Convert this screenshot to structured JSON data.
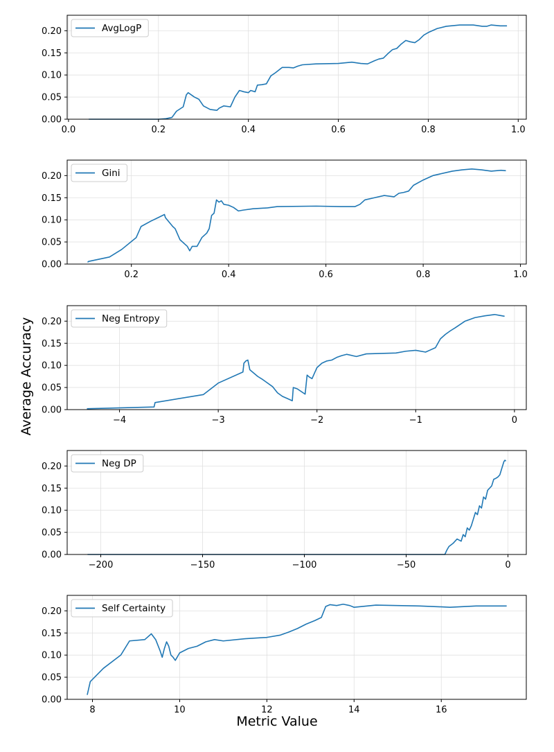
{
  "figure": {
    "ylabel": "Average Accuracy",
    "xlabel": "Metric Value"
  },
  "colors": {
    "line": "#1f77b4",
    "grid": "#e0e0e0",
    "axis": "#000000",
    "legend_border": "#cccccc"
  },
  "chart_data": [
    {
      "type": "line",
      "legend": "AvgLogP",
      "legend_loc": "upper-left",
      "grid": true,
      "xlim": [
        -0.003,
        1.018
      ],
      "ylim": [
        0,
        0.235
      ],
      "xticks": [
        0.0,
        0.2,
        0.4,
        0.6,
        0.8,
        1.0
      ],
      "xtick_labels": [
        "0.0",
        "0.2",
        "0.4",
        "0.6",
        "0.8",
        "1.0"
      ],
      "yticks": [
        0.0,
        0.05,
        0.1,
        0.15,
        0.2
      ],
      "ytick_labels": [
        "0.00",
        "0.05",
        "0.10",
        "0.15",
        "0.20"
      ],
      "x": [
        0.045,
        0.2,
        0.215,
        0.23,
        0.24,
        0.255,
        0.262,
        0.266,
        0.28,
        0.29,
        0.3,
        0.315,
        0.33,
        0.335,
        0.345,
        0.36,
        0.37,
        0.38,
        0.39,
        0.4,
        0.405,
        0.415,
        0.42,
        0.43,
        0.44,
        0.45,
        0.46,
        0.475,
        0.49,
        0.5,
        0.51,
        0.52,
        0.55,
        0.6,
        0.63,
        0.65,
        0.665,
        0.68,
        0.69,
        0.7,
        0.71,
        0.72,
        0.73,
        0.74,
        0.75,
        0.76,
        0.77,
        0.78,
        0.79,
        0.8,
        0.82,
        0.84,
        0.86,
        0.87,
        0.9,
        0.92,
        0.93,
        0.94,
        0.95,
        0.96,
        0.975
      ],
      "y": [
        0.0,
        0.0,
        0.001,
        0.004,
        0.018,
        0.028,
        0.055,
        0.06,
        0.05,
        0.045,
        0.03,
        0.022,
        0.02,
        0.025,
        0.03,
        0.028,
        0.05,
        0.065,
        0.062,
        0.06,
        0.065,
        0.062,
        0.077,
        0.078,
        0.08,
        0.098,
        0.105,
        0.117,
        0.117,
        0.116,
        0.12,
        0.123,
        0.125,
        0.126,
        0.129,
        0.126,
        0.125,
        0.132,
        0.136,
        0.138,
        0.148,
        0.157,
        0.16,
        0.17,
        0.178,
        0.175,
        0.173,
        0.18,
        0.19,
        0.196,
        0.205,
        0.21,
        0.212,
        0.213,
        0.213,
        0.21,
        0.21,
        0.213,
        0.212,
        0.211,
        0.211
      ]
    },
    {
      "type": "line",
      "legend": "Gini",
      "legend_loc": "upper-left",
      "grid": true,
      "xlim": [
        0.068,
        1.012
      ],
      "ylim": [
        0,
        0.235
      ],
      "xticks": [
        0.2,
        0.4,
        0.6,
        0.8,
        1.0
      ],
      "xtick_labels": [
        "0.2",
        "0.4",
        "0.6",
        "0.8",
        "1.0"
      ],
      "yticks": [
        0.0,
        0.05,
        0.1,
        0.15,
        0.2
      ],
      "ytick_labels": [
        "0.00",
        "0.05",
        "0.10",
        "0.15",
        "0.20"
      ],
      "x": [
        0.11,
        0.112,
        0.155,
        0.18,
        0.21,
        0.22,
        0.24,
        0.255,
        0.268,
        0.27,
        0.285,
        0.29,
        0.3,
        0.315,
        0.32,
        0.325,
        0.33,
        0.335,
        0.34,
        0.345,
        0.355,
        0.36,
        0.365,
        0.37,
        0.375,
        0.38,
        0.385,
        0.39,
        0.4,
        0.41,
        0.42,
        0.43,
        0.45,
        0.48,
        0.5,
        0.58,
        0.63,
        0.66,
        0.67,
        0.68,
        0.7,
        0.72,
        0.74,
        0.75,
        0.76,
        0.77,
        0.78,
        0.8,
        0.82,
        0.86,
        0.88,
        0.9,
        0.92,
        0.94,
        0.96,
        0.97
      ],
      "y": [
        0.004,
        0.006,
        0.016,
        0.033,
        0.06,
        0.085,
        0.097,
        0.105,
        0.112,
        0.105,
        0.085,
        0.08,
        0.055,
        0.04,
        0.03,
        0.04,
        0.04,
        0.04,
        0.05,
        0.06,
        0.07,
        0.08,
        0.11,
        0.115,
        0.145,
        0.14,
        0.143,
        0.135,
        0.133,
        0.128,
        0.12,
        0.122,
        0.125,
        0.127,
        0.13,
        0.131,
        0.13,
        0.13,
        0.135,
        0.145,
        0.15,
        0.155,
        0.152,
        0.16,
        0.162,
        0.165,
        0.178,
        0.19,
        0.2,
        0.21,
        0.213,
        0.215,
        0.213,
        0.21,
        0.212,
        0.211
      ]
    },
    {
      "type": "line",
      "legend": "Neg Entropy",
      "legend_loc": "upper-left",
      "grid": true,
      "xlim": [
        -4.53,
        0.12
      ],
      "ylim": [
        0,
        0.235
      ],
      "xticks": [
        -4,
        -3,
        -2,
        -1,
        0
      ],
      "xtick_labels": [
        "−4",
        "−3",
        "−2",
        "−1",
        "0"
      ],
      "yticks": [
        0.0,
        0.05,
        0.1,
        0.15,
        0.2
      ],
      "ytick_labels": [
        "0.00",
        "0.05",
        "0.10",
        "0.15",
        "0.20"
      ],
      "x": [
        -4.33,
        -3.65,
        -3.64,
        -3.15,
        -3.0,
        -2.75,
        -2.74,
        -2.72,
        -2.7,
        -2.68,
        -2.6,
        -2.55,
        -2.45,
        -2.4,
        -2.35,
        -2.3,
        -2.25,
        -2.24,
        -2.2,
        -2.12,
        -2.1,
        -2.08,
        -2.05,
        -2.0,
        -1.95,
        -1.9,
        -1.85,
        -1.8,
        -1.75,
        -1.7,
        -1.6,
        -1.5,
        -1.2,
        -1.1,
        -1.0,
        -0.9,
        -0.85,
        -0.8,
        -0.75,
        -0.7,
        -0.65,
        -0.6,
        -0.5,
        -0.4,
        -0.3,
        -0.2,
        -0.15,
        -0.1
      ],
      "y": [
        0.002,
        0.006,
        0.016,
        0.034,
        0.06,
        0.085,
        0.105,
        0.11,
        0.112,
        0.09,
        0.075,
        0.068,
        0.052,
        0.038,
        0.03,
        0.025,
        0.02,
        0.05,
        0.047,
        0.035,
        0.078,
        0.074,
        0.07,
        0.095,
        0.105,
        0.11,
        0.112,
        0.118,
        0.122,
        0.125,
        0.12,
        0.126,
        0.128,
        0.132,
        0.134,
        0.13,
        0.135,
        0.14,
        0.16,
        0.17,
        0.178,
        0.185,
        0.2,
        0.208,
        0.212,
        0.215,
        0.213,
        0.211
      ]
    },
    {
      "type": "line",
      "legend": "Neg DP",
      "legend_loc": "upper-left",
      "grid": true,
      "xlim": [
        -216.5,
        9.0
      ],
      "ylim": [
        0,
        0.235
      ],
      "xticks": [
        -200,
        -150,
        -100,
        -50,
        0
      ],
      "xtick_labels": [
        "−200",
        "−150",
        "−100",
        "−50",
        "0"
      ],
      "yticks": [
        0.0,
        0.05,
        0.1,
        0.15,
        0.2
      ],
      "ytick_labels": [
        "0.00",
        "0.05",
        "0.10",
        "0.15",
        "0.20"
      ],
      "x": [
        -206.5,
        -31,
        -30,
        -29,
        -27,
        -25,
        -23,
        -22,
        -21,
        -20,
        -19,
        -18,
        -17,
        -16,
        -15,
        -14,
        -13,
        -12,
        -11,
        -10,
        -9,
        -8,
        -7,
        -6,
        -5,
        -4,
        -3,
        -2,
        -1.5,
        -1
      ],
      "y": [
        0.0,
        0.0,
        0.01,
        0.018,
        0.025,
        0.035,
        0.03,
        0.045,
        0.04,
        0.06,
        0.055,
        0.065,
        0.08,
        0.095,
        0.09,
        0.11,
        0.105,
        0.13,
        0.125,
        0.145,
        0.15,
        0.155,
        0.17,
        0.172,
        0.175,
        0.18,
        0.195,
        0.21,
        0.213,
        0.211
      ]
    },
    {
      "type": "line",
      "legend": "Self Certainty",
      "legend_loc": "upper-left",
      "grid": true,
      "xlim": [
        7.42,
        17.95
      ],
      "ylim": [
        0,
        0.235
      ],
      "xticks": [
        8,
        10,
        12,
        14,
        16
      ],
      "xtick_labels": [
        "8",
        "10",
        "12",
        "14",
        "16"
      ],
      "yticks": [
        0.0,
        0.05,
        0.1,
        0.15,
        0.2
      ],
      "ytick_labels": [
        "0.00",
        "0.05",
        "0.10",
        "0.15",
        "0.20"
      ],
      "x": [
        7.88,
        7.95,
        8.25,
        8.65,
        8.85,
        9.2,
        9.35,
        9.45,
        9.55,
        9.6,
        9.65,
        9.7,
        9.75,
        9.8,
        9.85,
        9.9,
        10.0,
        10.2,
        10.4,
        10.6,
        10.8,
        11.0,
        11.5,
        12.0,
        12.3,
        12.5,
        12.7,
        12.9,
        13.1,
        13.25,
        13.35,
        13.45,
        13.6,
        13.75,
        13.9,
        14.0,
        14.2,
        14.5,
        15.0,
        15.5,
        16.0,
        16.2,
        16.8,
        17.5
      ],
      "y": [
        0.01,
        0.04,
        0.07,
        0.1,
        0.132,
        0.135,
        0.148,
        0.135,
        0.11,
        0.095,
        0.115,
        0.13,
        0.12,
        0.1,
        0.095,
        0.088,
        0.105,
        0.115,
        0.12,
        0.13,
        0.135,
        0.132,
        0.137,
        0.14,
        0.145,
        0.152,
        0.16,
        0.17,
        0.178,
        0.185,
        0.21,
        0.214,
        0.212,
        0.215,
        0.212,
        0.208,
        0.21,
        0.213,
        0.212,
        0.211,
        0.209,
        0.208,
        0.211,
        0.211
      ]
    }
  ]
}
